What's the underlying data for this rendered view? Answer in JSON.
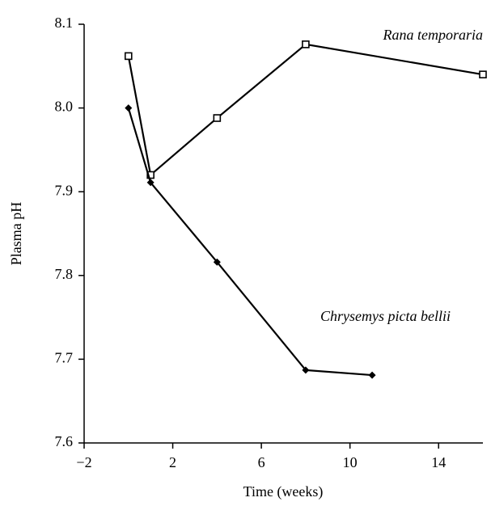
{
  "chart_data": {
    "type": "line",
    "x_label": "Time (weeks)",
    "y_label": "Plasma pH",
    "xlim": [
      -2,
      16
    ],
    "ylim": [
      7.6,
      8.1
    ],
    "xticks": [
      {
        "value": -2,
        "label": "−2"
      },
      2,
      6,
      10,
      14
    ],
    "yticks": [
      7.6,
      7.7,
      7.8,
      7.9,
      {
        "value": 8,
        "label": "8.0"
      },
      8.1
    ],
    "annotations": [
      "Rana temporaria",
      "Chrysemys picta bellii"
    ],
    "series": [
      {
        "name": "Rana temporaria",
        "color": "#000000",
        "marker": "square",
        "x": [
          0,
          1,
          4,
          8,
          16
        ],
        "values": [
          8.062,
          7.92,
          7.988,
          8.076,
          8.04
        ]
      },
      {
        "name": "Chrysemys picta bellii",
        "color": "#000000",
        "marker": "diamond",
        "x": [
          0,
          1,
          4,
          8,
          11
        ],
        "values": [
          8.0,
          7.911,
          7.816,
          7.687,
          7.681
        ]
      }
    ]
  }
}
